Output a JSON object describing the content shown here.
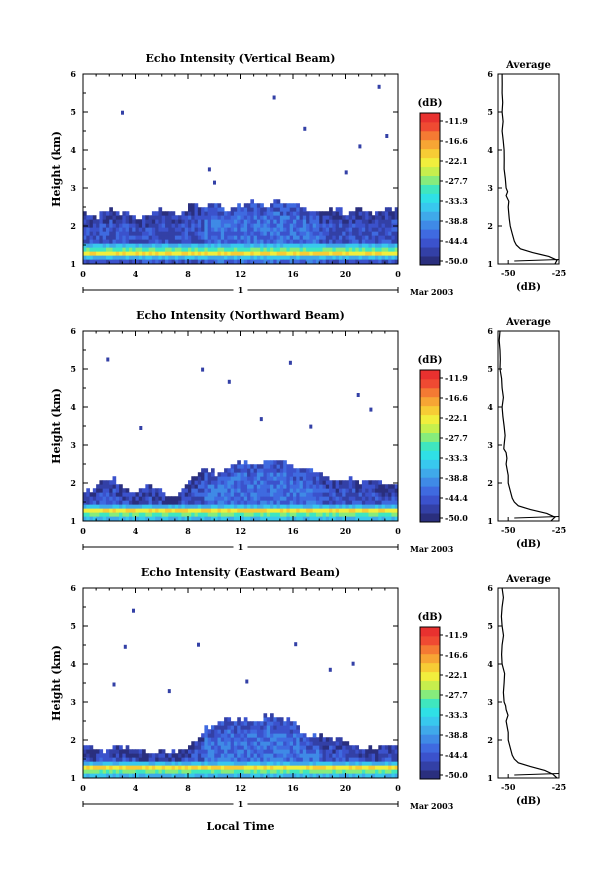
{
  "colors": {
    "scale": [
      "#2a2f7e",
      "#3340a6",
      "#3b52cc",
      "#3f6ae0",
      "#3f8ae6",
      "#3fa9ea",
      "#38c8ee",
      "#2fe0e6",
      "#3fe6bf",
      "#86ec7c",
      "#c6ef4d",
      "#f1ee3d",
      "#f7cc35",
      "#f7a534",
      "#f47a33",
      "#ef4a32",
      "#e8312f"
    ],
    "background": "#ffffff",
    "axis": "#000000"
  },
  "shared": {
    "height_label": "Height (km)",
    "colorbar_unit": "(dB)",
    "colorbar_ticks": [
      "-11.9",
      "-16.6",
      "-22.1",
      "-27.7",
      "-33.3",
      "-38.8",
      "-44.4",
      "-50.0"
    ],
    "average_title": "Average",
    "average_xlabel": "(dB)",
    "average_xticks": [
      "-50",
      "-25"
    ],
    "date_label": "Mar 2003",
    "day_label": "1",
    "x_ticks": [
      "0",
      "4",
      "8",
      "12",
      "16",
      "20",
      "0"
    ],
    "y_ticks": [
      "1",
      "2",
      "3",
      "4",
      "5",
      "6"
    ],
    "xlabel": "Local Time"
  },
  "chart_data": [
    {
      "type": "heatmap",
      "title": "Echo Intensity (Vertical Beam)",
      "xlabel": "",
      "ylabel": "Height (km)",
      "xlim": [
        0,
        24
      ],
      "ylim": [
        1,
        6
      ],
      "color_range_db": [
        -50.0,
        -11.9
      ],
      "echo_top_km": [
        2.3,
        2.2,
        2.4,
        2.3,
        2.2,
        2.3,
        2.4,
        2.2,
        2.5,
        2.4,
        2.5,
        2.4,
        2.5,
        2.6,
        2.5,
        2.6,
        2.5,
        2.4,
        2.3,
        2.4,
        2.3,
        2.4,
        2.3,
        2.4
      ],
      "bright_band_km": 1.25,
      "average_profile": {
        "xlim": [
          -55,
          -25
        ],
        "heights_km": [
          1.0,
          1.1,
          1.2,
          1.3,
          1.4,
          1.5,
          1.6,
          1.8,
          2.0,
          2.2,
          2.5,
          2.8,
          3.0,
          3.5,
          4.0,
          4.5,
          5.0,
          5.5,
          6.0
        ],
        "db": [
          -27,
          -26,
          -30,
          -38,
          -44,
          -46,
          -47,
          -48,
          -49,
          -49.5,
          -50,
          -51,
          -51,
          -52,
          -52,
          -53,
          -53,
          -53,
          -53
        ]
      }
    },
    {
      "type": "heatmap",
      "title": "Echo Intensity (Northward Beam)",
      "xlabel": "",
      "ylabel": "Height (km)",
      "xlim": [
        0,
        24
      ],
      "ylim": [
        1,
        6
      ],
      "color_range_db": [
        -50.0,
        -11.9
      ],
      "echo_top_km": [
        1.7,
        1.9,
        2.1,
        1.8,
        1.7,
        1.9,
        1.7,
        1.6,
        2.0,
        2.3,
        2.2,
        2.4,
        2.5,
        2.4,
        2.6,
        2.5,
        2.4,
        2.3,
        2.2,
        2.0,
        2.1,
        2.0,
        2.0,
        1.9
      ],
      "bright_band_km": 1.22,
      "average_profile": {
        "xlim": [
          -55,
          -25
        ],
        "heights_km": [
          1.0,
          1.1,
          1.2,
          1.3,
          1.4,
          1.5,
          1.6,
          1.8,
          2.0,
          2.2,
          2.5,
          2.8,
          3.0,
          3.5,
          4.0,
          4.5,
          5.0,
          5.5,
          6.0
        ],
        "db": [
          -29,
          -27,
          -31,
          -39,
          -45,
          -47,
          -48,
          -49,
          -50,
          -50,
          -51,
          -51,
          -52,
          -52,
          -53,
          -53,
          -54,
          -54,
          -54
        ]
      }
    },
    {
      "type": "heatmap",
      "title": "Echo Intensity (Eastward Beam)",
      "xlabel": "Local Time",
      "ylabel": "Height (km)",
      "xlim": [
        0,
        24
      ],
      "ylim": [
        1,
        6
      ],
      "color_range_db": [
        -50.0,
        -11.9
      ],
      "echo_top_km": [
        1.8,
        1.7,
        1.7,
        1.8,
        1.7,
        1.6,
        1.7,
        1.6,
        1.8,
        2.2,
        2.4,
        2.5,
        2.5,
        2.4,
        2.6,
        2.5,
        2.4,
        2.0,
        2.1,
        2.0,
        1.9,
        1.8,
        1.7,
        1.8
      ],
      "bright_band_km": 1.2,
      "average_profile": {
        "xlim": [
          -55,
          -25
        ],
        "heights_km": [
          1.0,
          1.1,
          1.2,
          1.3,
          1.4,
          1.5,
          1.6,
          1.8,
          2.0,
          2.2,
          2.5,
          2.8,
          3.0,
          3.5,
          4.0,
          4.5,
          5.0,
          5.5,
          6.0
        ],
        "db": [
          -26,
          -28,
          -32,
          -39,
          -45,
          -47,
          -48,
          -49,
          -50,
          -50,
          -51,
          -51,
          -52,
          -52,
          -53,
          -53,
          -53,
          -53,
          -53
        ]
      }
    }
  ]
}
